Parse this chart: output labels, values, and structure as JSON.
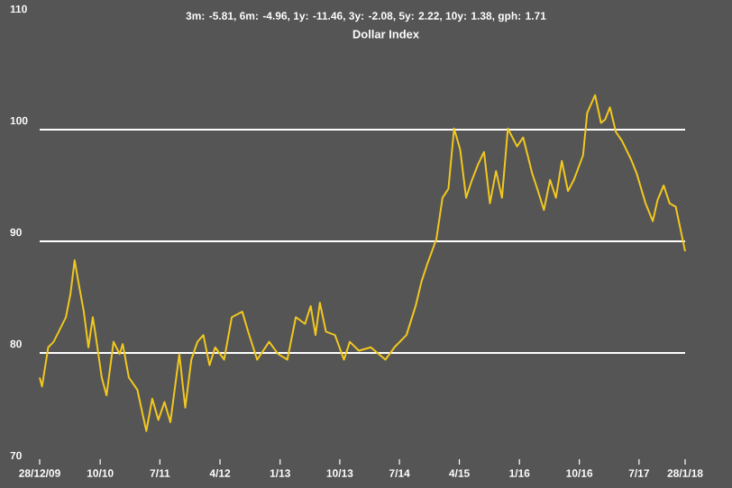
{
  "chart_data": {
    "type": "line",
    "title": "Dollar Index",
    "subtitle": "3m: -5.81,   6m: -4.96,   1y: -11.46,   3y: -2.08,   5y: 2.22,   10y: 1.38,   gph: 1.71",
    "x": [
      "2009-12-28",
      "2010-01-08",
      "2010-02-05",
      "2010-03-02",
      "2010-03-30",
      "2010-04-27",
      "2010-05-18",
      "2010-06-06",
      "2010-06-20",
      "2010-07-18",
      "2010-08-08",
      "2010-08-28",
      "2010-09-10",
      "2010-10-08",
      "2010-10-30",
      "2010-12-01",
      "2010-12-29",
      "2011-01-12",
      "2011-02-09",
      "2011-03-20",
      "2011-04-30",
      "2011-05-27",
      "2011-06-24",
      "2011-07-22",
      "2011-08-18",
      "2011-09-28",
      "2011-10-25",
      "2011-11-22",
      "2011-12-20",
      "2012-01-16",
      "2012-02-13",
      "2012-03-10",
      "2012-04-20",
      "2012-05-25",
      "2012-07-12",
      "2012-08-08",
      "2012-09-18",
      "2012-11-12",
      "2012-12-23",
      "2013-02-03",
      "2013-03-14",
      "2013-04-25",
      "2013-05-21",
      "2013-06-12",
      "2013-07-02",
      "2013-07-30",
      "2013-09-09",
      "2013-10-20",
      "2013-11-16",
      "2013-12-27",
      "2014-02-20",
      "2014-04-28",
      "2014-06-08",
      "2014-08-02",
      "2014-09-13",
      "2014-10-10",
      "2014-11-06",
      "2014-12-17",
      "2015-01-14",
      "2015-02-10",
      "2015-03-08",
      "2015-04-05",
      "2015-05-02",
      "2015-05-29",
      "2015-06-26",
      "2015-07-23",
      "2015-08-19",
      "2015-09-16",
      "2015-10-13",
      "2015-11-09",
      "2015-12-21",
      "2016-01-18",
      "2016-02-28",
      "2016-03-26",
      "2016-04-22",
      "2016-05-20",
      "2016-06-16",
      "2016-07-13",
      "2016-08-10",
      "2016-09-06",
      "2016-10-18",
      "2016-11-06",
      "2016-12-12",
      "2017-01-08",
      "2017-01-27",
      "2017-02-18",
      "2017-03-17",
      "2017-04-14",
      "2017-05-24",
      "2017-06-20",
      "2017-07-31",
      "2017-09-02",
      "2017-09-24",
      "2017-10-22",
      "2017-11-18",
      "2017-12-16",
      "2018-01-28"
    ],
    "series": [
      {
        "color": "#f2c81e",
        "values": [
          77.8,
          77.0,
          80.5,
          81.0,
          82.1,
          83.2,
          85.3,
          88.3,
          86.7,
          83.7,
          80.5,
          83.2,
          81.6,
          77.8,
          76.2,
          81.0,
          79.9,
          80.8,
          77.8,
          76.7,
          73.0,
          75.9,
          74.0,
          75.6,
          73.8,
          79.9,
          75.1,
          79.4,
          81.0,
          81.6,
          78.9,
          80.5,
          79.4,
          83.2,
          83.7,
          81.9,
          79.4,
          81.0,
          79.9,
          79.4,
          83.2,
          82.6,
          84.2,
          81.6,
          84.5,
          81.9,
          81.6,
          79.4,
          81.0,
          80.2,
          80.5,
          79.4,
          80.5,
          81.6,
          84.2,
          86.4,
          88.0,
          90.2,
          93.9,
          94.7,
          100.1,
          98.2,
          93.9,
          95.5,
          96.9,
          98.0,
          93.4,
          96.3,
          93.9,
          100.1,
          98.5,
          99.3,
          96.1,
          94.5,
          92.8,
          95.5,
          93.9,
          97.2,
          94.5,
          95.5,
          97.7,
          101.5,
          103.1,
          100.6,
          100.9,
          102.0,
          99.8,
          99.0,
          97.4,
          96.1,
          93.4,
          91.8,
          93.7,
          95.0,
          93.4,
          93.1,
          89.1
        ]
      }
    ],
    "xlim": [
      "2009-12-28",
      "2018-01-28"
    ],
    "xticks": [
      {
        "value": "2009-12-28",
        "label": "28/12/09"
      },
      {
        "value": "2010-10-01",
        "label": "10/10"
      },
      {
        "value": "2011-07-01",
        "label": "7/11"
      },
      {
        "value": "2012-04-01",
        "label": "4/12"
      },
      {
        "value": "2013-01-01",
        "label": "1/13"
      },
      {
        "value": "2013-10-01",
        "label": "10/13"
      },
      {
        "value": "2014-07-01",
        "label": "7/14"
      },
      {
        "value": "2015-04-01",
        "label": "4/15"
      },
      {
        "value": "2016-01-01",
        "label": "1/16"
      },
      {
        "value": "2016-10-01",
        "label": "10/16"
      },
      {
        "value": "2017-07-01",
        "label": "7/17"
      },
      {
        "value": "2018-01-28",
        "label": "28/1/18"
      }
    ],
    "ylim": [
      70,
      110
    ],
    "yticks": [
      70,
      80,
      90,
      100,
      110
    ],
    "grid": "y"
  }
}
